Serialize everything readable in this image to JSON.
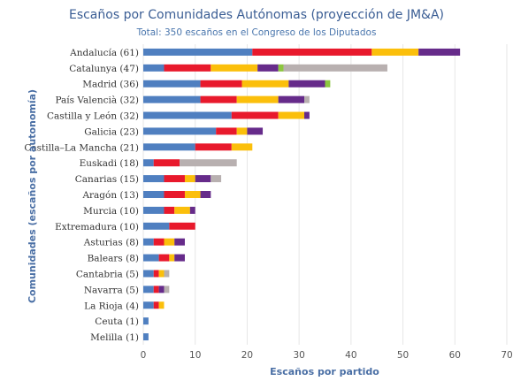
{
  "chart_data": {
    "type": "bar",
    "orientation": "horizontal",
    "stacked": true,
    "title": "Escaños por Comunidades Autónomas (proyección de JM&A)",
    "subtitle": "Total: 350 escaños en el Congreso de los Diputados",
    "xlabel": "Escaños por partido",
    "ylabel": "Comunidades (escaños por autonomía)",
    "xlim": [
      0,
      70
    ],
    "xticks": [
      "0",
      "10",
      "20",
      "30",
      "40",
      "50",
      "60",
      "70"
    ],
    "grid": true,
    "legend": "none",
    "colors": [
      "#4f7fc0",
      "#e8192c",
      "#fbbf0b",
      "#662b8a",
      "#8cc63f",
      "#b8b0b0"
    ],
    "categories": [
      "Andalucía (61)",
      "Catalunya (47)",
      "Madrid (36)",
      "País Valencià (32)",
      "Castilla y León (32)",
      "Galicia (23)",
      "Castilla–La Mancha (21)",
      "Euskadi (18)",
      "Canarias (15)",
      "Aragón (13)",
      "Murcia (10)",
      "Extremadura (10)",
      "Asturias (8)",
      "Balears (8)",
      "Cantabria (5)",
      "Navarra (5)",
      "La Rioja (4)",
      "Ceuta (1)",
      "Melilla (1)"
    ],
    "series": [
      {
        "values": [
          21,
          4,
          11,
          11,
          17,
          14,
          10,
          2,
          4,
          4,
          4,
          5,
          2,
          3,
          2,
          2,
          2,
          1,
          1
        ]
      },
      {
        "values": [
          23,
          9,
          8,
          7,
          9,
          4,
          7,
          5,
          4,
          4,
          2,
          5,
          2,
          2,
          1,
          1,
          1,
          0,
          0
        ]
      },
      {
        "values": [
          9,
          9,
          9,
          8,
          5,
          2,
          4,
          0,
          2,
          3,
          3,
          0,
          2,
          1,
          1,
          0,
          1,
          0,
          0
        ]
      },
      {
        "values": [
          8,
          4,
          7,
          5,
          1,
          3,
          0,
          0,
          3,
          2,
          1,
          0,
          2,
          2,
          0,
          1,
          0,
          0,
          0
        ]
      },
      {
        "values": [
          0,
          1,
          1,
          0,
          0,
          0,
          0,
          0,
          0,
          0,
          0,
          0,
          0,
          0,
          0,
          0,
          0,
          0,
          0
        ]
      },
      {
        "values": [
          0,
          20,
          0,
          1,
          0,
          0,
          0,
          11,
          2,
          0,
          0,
          0,
          0,
          0,
          1,
          1,
          0,
          0,
          0
        ]
      }
    ]
  }
}
